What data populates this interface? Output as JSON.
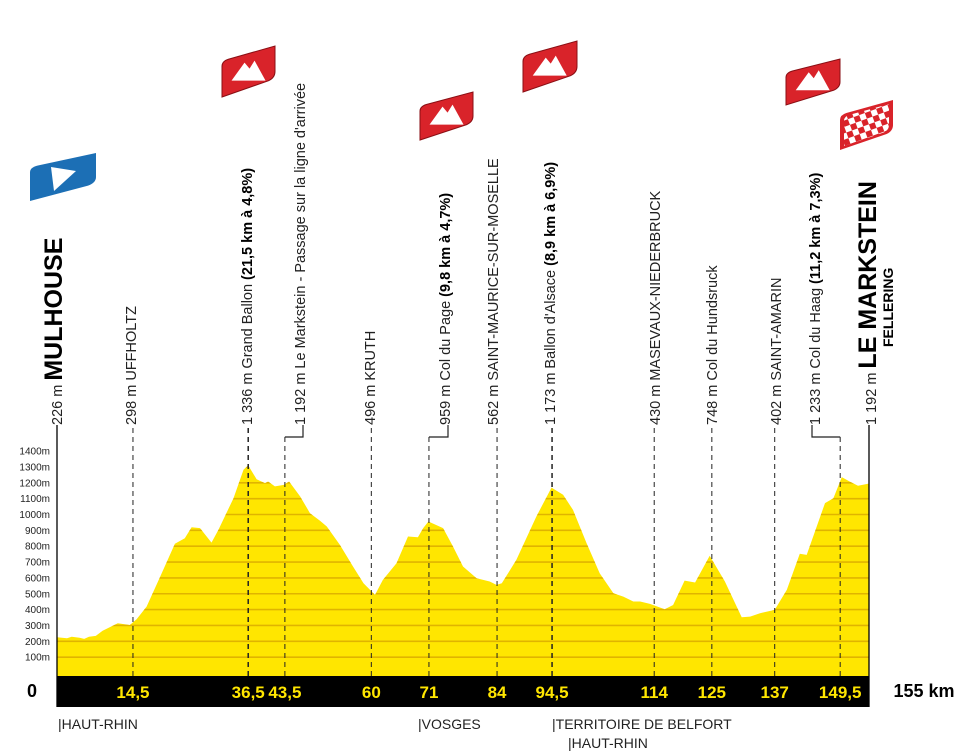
{
  "chart_data": {
    "type": "area",
    "x_unit": "km",
    "y_unit": "m",
    "xlim": [
      0,
      155
    ],
    "ylim": [
      0,
      1400
    ],
    "fill_color": "#ffe600",
    "stripe_color": "#e0b400",
    "y_ticks": [
      {
        "value": 100,
        "label": "100m"
      },
      {
        "value": 200,
        "label": "200m"
      },
      {
        "value": 300,
        "label": "300m"
      },
      {
        "value": 400,
        "label": "400m"
      },
      {
        "value": 500,
        "label": "500m"
      },
      {
        "value": 600,
        "label": "600m"
      },
      {
        "value": 700,
        "label": "700m"
      },
      {
        "value": 800,
        "label": "800m"
      },
      {
        "value": 900,
        "label": "900m"
      },
      {
        "value": 1000,
        "label": "1000m"
      },
      {
        "value": 1100,
        "label": "1100m"
      },
      {
        "value": 1200,
        "label": "1200m"
      },
      {
        "value": 1300,
        "label": "1300m"
      },
      {
        "value": 1400,
        "label": "1400m"
      }
    ],
    "x_start_label": "0",
    "x_end_label": "155 km",
    "x_ticks": [
      {
        "value": 14.5,
        "label": "14,5"
      },
      {
        "value": 36.5,
        "label": "36,5"
      },
      {
        "value": 43.5,
        "label": "43,5"
      },
      {
        "value": 60,
        "label": "60"
      },
      {
        "value": 71,
        "label": "71"
      },
      {
        "value": 84,
        "label": "84"
      },
      {
        "value": 94.5,
        "label": "94,5"
      },
      {
        "value": 114,
        "label": "114"
      },
      {
        "value": 125,
        "label": "125"
      },
      {
        "value": 137,
        "label": "137"
      },
      {
        "value": 149.5,
        "label": "149,5"
      }
    ],
    "profile": [
      [
        0,
        226
      ],
      [
        1.9,
        219
      ],
      [
        2.8,
        229
      ],
      [
        4.3,
        223
      ],
      [
        5.2,
        215
      ],
      [
        6.1,
        229
      ],
      [
        7.4,
        234
      ],
      [
        8.7,
        267
      ],
      [
        11.6,
        314
      ],
      [
        13.9,
        303
      ],
      [
        15.2,
        339
      ],
      [
        17.1,
        419
      ],
      [
        19.7,
        608
      ],
      [
        22.5,
        815
      ],
      [
        24.4,
        850
      ],
      [
        25.7,
        920
      ],
      [
        27.3,
        914
      ],
      [
        29.5,
        823
      ],
      [
        30.8,
        903
      ],
      [
        33.7,
        1103
      ],
      [
        35.6,
        1282
      ],
      [
        36.5,
        1310
      ],
      [
        38.1,
        1223
      ],
      [
        39.7,
        1198
      ],
      [
        40.3,
        1208
      ],
      [
        41.6,
        1177
      ],
      [
        43.3,
        1187
      ],
      [
        44.3,
        1208
      ],
      [
        46.4,
        1114
      ],
      [
        48.3,
        1008
      ],
      [
        50.2,
        960
      ],
      [
        51.5,
        924
      ],
      [
        54.0,
        808
      ],
      [
        56.5,
        672
      ],
      [
        58.5,
        566
      ],
      [
        60.7,
        493
      ],
      [
        62.2,
        587
      ],
      [
        64.8,
        693
      ],
      [
        67.0,
        861
      ],
      [
        68.9,
        857
      ],
      [
        69.9,
        914
      ],
      [
        70.9,
        956
      ],
      [
        73.7,
        914
      ],
      [
        75.6,
        798
      ],
      [
        77.5,
        672
      ],
      [
        80.1,
        598
      ],
      [
        82.6,
        577
      ],
      [
        83.9,
        556
      ],
      [
        84.9,
        566
      ],
      [
        87.7,
        714
      ],
      [
        91.5,
        987
      ],
      [
        94.4,
        1170
      ],
      [
        96.6,
        1124
      ],
      [
        98.5,
        1029
      ],
      [
        101.1,
        819
      ],
      [
        103.6,
        629
      ],
      [
        106.2,
        503
      ],
      [
        108.1,
        482
      ],
      [
        110.0,
        451
      ],
      [
        111.3,
        451
      ],
      [
        113.2,
        436
      ],
      [
        116.0,
        402
      ],
      [
        117.6,
        429
      ],
      [
        119.8,
        583
      ],
      [
        121.8,
        571
      ],
      [
        124.6,
        740
      ],
      [
        127.5,
        577
      ],
      [
        130.7,
        352
      ],
      [
        132.3,
        356
      ],
      [
        134.2,
        377
      ],
      [
        137.0,
        398
      ],
      [
        139.3,
        524
      ],
      [
        141.8,
        752
      ],
      [
        143.1,
        745
      ],
      [
        146.6,
        1072
      ],
      [
        148.2,
        1103
      ],
      [
        149.8,
        1236
      ],
      [
        151.3,
        1208
      ],
      [
        152.9,
        1181
      ],
      [
        154.8,
        1194
      ],
      [
        155,
        1192
      ]
    ],
    "waypoints": [
      {
        "km": 0,
        "altitude": "226 m",
        "name": "MULHOUSE",
        "climb": "",
        "type": "start",
        "icon": "start-flag-icon"
      },
      {
        "km": 14.5,
        "altitude": "298 m",
        "name": "UFFHOLTZ",
        "climb": "",
        "type": "town"
      },
      {
        "km": 36.5,
        "altitude": "1 336 m",
        "name": "Grand Ballon",
        "climb": "(21,5 km à 4,8%)",
        "type": "climb",
        "icon": "mountain-icon"
      },
      {
        "km": 43.5,
        "altitude": "1 192 m",
        "name": "Le Markstein - Passage sur la ligne d'arrivée",
        "climb": "",
        "type": "passage"
      },
      {
        "km": 60,
        "altitude": "496 m",
        "name": "KRUTH",
        "climb": "",
        "type": "town"
      },
      {
        "km": 71,
        "altitude": "959 m",
        "name": "Col du Page",
        "climb": "(9,8 km à 4,7%)",
        "type": "climb",
        "icon": "mountain-icon"
      },
      {
        "km": 84,
        "altitude": "562 m",
        "name": "SAINT-MAURICE-SUR-MOSELLE",
        "climb": "",
        "type": "town"
      },
      {
        "km": 94.5,
        "altitude": "1 173 m",
        "name": "Ballon d'Alsace",
        "climb": "(8,9 km à 6,9%)",
        "type": "climb",
        "icon": "mountain-icon"
      },
      {
        "km": 114,
        "altitude": "430 m",
        "name": "MASEVAUX-NIEDERBRUCK",
        "climb": "",
        "type": "town"
      },
      {
        "km": 125,
        "altitude": "748 m",
        "name": "Col du Hundsruck",
        "climb": "",
        "type": "pass"
      },
      {
        "km": 137,
        "altitude": "402 m",
        "name": "SAINT-AMARIN",
        "climb": "",
        "type": "town"
      },
      {
        "km": 149.5,
        "altitude": "1 233 m",
        "name": "Col du Haag",
        "climb": "(11,2 km à 7,3%)",
        "type": "climb",
        "icon": "mountain-icon"
      },
      {
        "km": 155,
        "altitude": "1 192 m",
        "name": "LE MARKSTEIN",
        "subname": "FELLERING",
        "climb": "",
        "type": "finish",
        "icon": "checkered-flag-icon"
      }
    ],
    "regions": [
      {
        "label": "|HAUT-RHIN"
      },
      {
        "label": "|VOSGES"
      },
      {
        "label": "|TERRITOIRE DE BELFORT"
      },
      {
        "label": "|HAUT-RHIN"
      }
    ],
    "colors": {
      "start": "#1c6fb5",
      "climb": "#d9232a",
      "band": "#000000"
    }
  }
}
